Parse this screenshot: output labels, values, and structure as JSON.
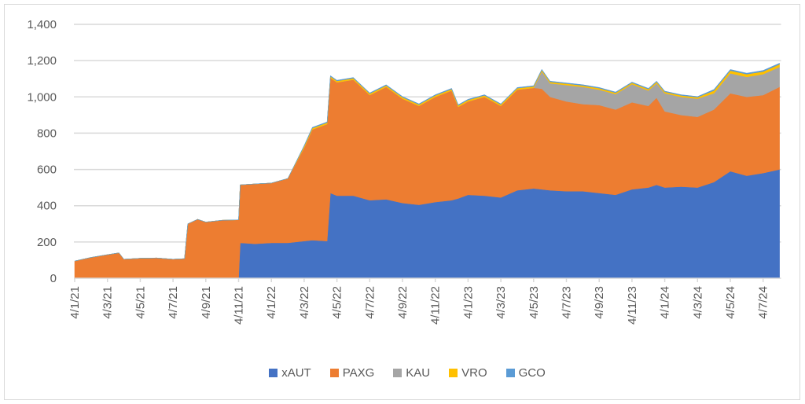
{
  "chart_data": {
    "type": "area",
    "stacked": true,
    "title": "",
    "xlabel": "",
    "ylabel": "",
    "ylim": [
      0,
      1400
    ],
    "yticks": [
      "0",
      "200",
      "400",
      "600",
      "800",
      "1,000",
      "1,200",
      "1,400"
    ],
    "ytick_values": [
      0,
      200,
      400,
      600,
      800,
      1000,
      1200,
      1400
    ],
    "x_unit": "months since Jan 2021",
    "xlim": [
      0,
      43
    ],
    "xtick_values": [
      0,
      2,
      4,
      6,
      8,
      10,
      12,
      14,
      16,
      18,
      20,
      22,
      24,
      26,
      28,
      30,
      32,
      34,
      36,
      38,
      40,
      42
    ],
    "xtick_labels": [
      "4/1/21",
      "4/3/21",
      "4/5/21",
      "4/7/21",
      "4/9/21",
      "4/11/21",
      "4/1/22",
      "4/3/22",
      "4/5/22",
      "4/7/22",
      "4/9/22",
      "4/11/22",
      "4/1/23",
      "4/3/23",
      "4/5/23",
      "4/7/23",
      "4/9/23",
      "4/11/23",
      "4/1/24",
      "4/3/24",
      "4/5/24",
      "4/7/24"
    ],
    "grid": true,
    "legend_position": "bottom",
    "x": [
      0,
      1,
      2,
      2.7,
      3,
      4,
      5,
      6,
      6.7,
      6.9,
      7.5,
      8,
      9,
      10,
      10.1,
      11,
      12,
      13,
      14,
      14.5,
      15.4,
      15.6,
      16,
      17,
      18,
      19,
      20,
      21,
      22,
      23,
      23.4,
      24,
      25,
      26,
      27,
      28,
      28.5,
      29,
      30,
      31,
      32,
      33,
      34,
      35,
      35.5,
      36,
      37,
      38,
      39,
      40,
      41,
      42,
      43
    ],
    "series": [
      {
        "name": "xAUT",
        "color": "#4472c4",
        "values": [
          0,
          0,
          0,
          0,
          0,
          0,
          0,
          0,
          0,
          0,
          0,
          0,
          0,
          0,
          195,
          190,
          195,
          195,
          205,
          210,
          205,
          470,
          455,
          455,
          430,
          435,
          415,
          405,
          420,
          430,
          440,
          460,
          455,
          445,
          485,
          495,
          490,
          485,
          480,
          480,
          470,
          460,
          490,
          500,
          515,
          500,
          505,
          500,
          530,
          590,
          565,
          580,
          600
        ]
      },
      {
        "name": "PAXG",
        "color": "#ed7d31",
        "values": [
          95,
          115,
          130,
          140,
          105,
          110,
          112,
          105,
          108,
          300,
          325,
          310,
          320,
          322,
          320,
          330,
          330,
          355,
          515,
          610,
          645,
          635,
          625,
          640,
          580,
          620,
          575,
          545,
          580,
          605,
          505,
          515,
          545,
          505,
          555,
          555,
          555,
          515,
          495,
          480,
          485,
          470,
          480,
          450,
          480,
          420,
          395,
          390,
          400,
          430,
          435,
          430,
          455
        ]
      },
      {
        "name": "KAU",
        "color": "#a5a5a5",
        "values": [
          0,
          0,
          0,
          0,
          0,
          0,
          0,
          0,
          0,
          0,
          0,
          0,
          0,
          0,
          0,
          0,
          0,
          0,
          0,
          0,
          0,
          0,
          0,
          0,
          0,
          0,
          0,
          0,
          0,
          0,
          0,
          0,
          0,
          0,
          0,
          0,
          95,
          75,
          90,
          95,
          85,
          85,
          100,
          85,
          80,
          100,
          100,
          100,
          90,
          110,
          110,
          115,
          110
        ]
      },
      {
        "name": "VRO",
        "color": "#ffc000",
        "values": [
          0,
          0,
          0,
          0,
          0,
          0,
          0,
          0,
          0,
          0,
          0,
          0,
          0,
          0,
          0,
          0,
          0,
          0,
          8,
          8,
          8,
          8,
          8,
          8,
          8,
          8,
          8,
          8,
          8,
          8,
          8,
          8,
          8,
          8,
          8,
          8,
          8,
          8,
          8,
          8,
          8,
          8,
          8,
          8,
          8,
          8,
          8,
          8,
          15,
          15,
          15,
          15,
          15
        ]
      },
      {
        "name": "GCO",
        "color": "#5b9bd5",
        "values": [
          0,
          0,
          0,
          0,
          0,
          0,
          0,
          0,
          0,
          0,
          0,
          0,
          0,
          0,
          0,
          0,
          0,
          0,
          4,
          4,
          4,
          4,
          4,
          4,
          4,
          4,
          4,
          4,
          4,
          4,
          4,
          4,
          4,
          4,
          4,
          4,
          4,
          4,
          4,
          4,
          4,
          4,
          4,
          4,
          4,
          4,
          4,
          4,
          6,
          6,
          6,
          6,
          6
        ]
      }
    ]
  }
}
